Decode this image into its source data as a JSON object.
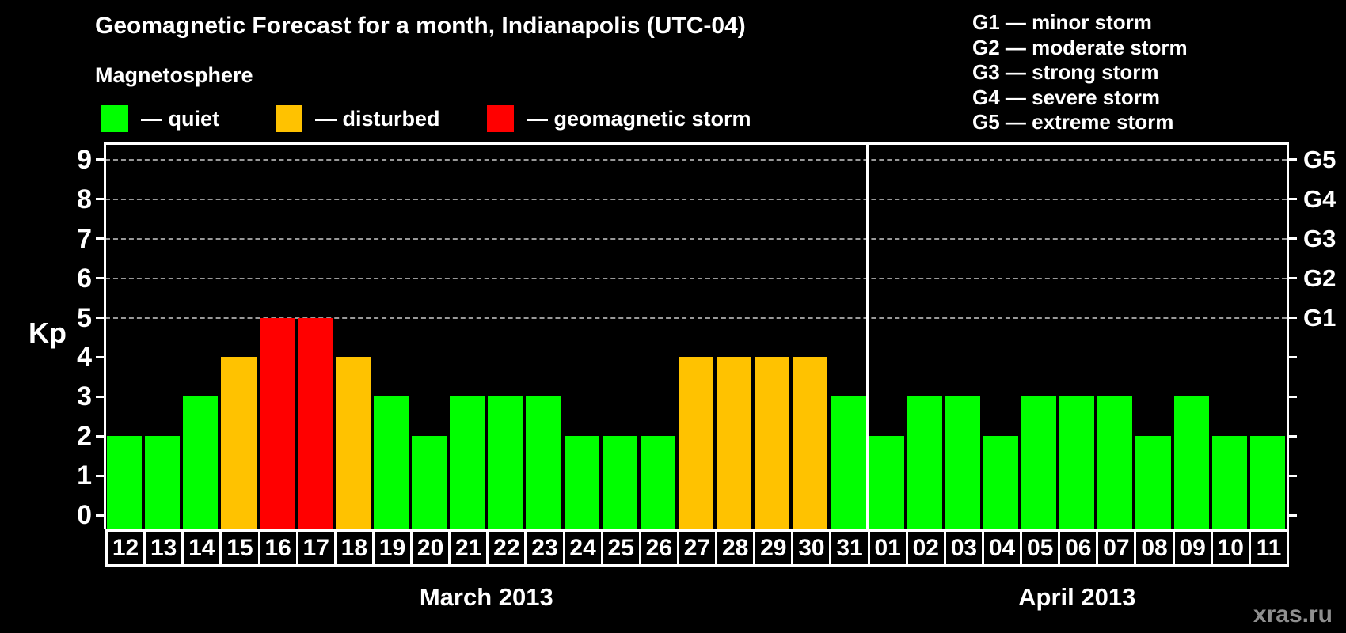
{
  "header": {
    "title": "Geomagnetic Forecast for a month, Indianapolis (UTC-04)"
  },
  "g_scale_legend": {
    "items": [
      {
        "label": "G1 — minor storm"
      },
      {
        "label": "G2 — moderate storm"
      },
      {
        "label": "G3 — strong storm"
      },
      {
        "label": "G4 — severe storm"
      },
      {
        "label": "G5 — extreme storm"
      }
    ]
  },
  "magnetosphere_legend": {
    "heading": "Magnetosphere",
    "items": [
      {
        "status": "quiet",
        "label": "— quiet",
        "color": "#00ff00"
      },
      {
        "status": "disturbed",
        "label": "— disturbed",
        "color": "#ffc200"
      },
      {
        "status": "storm",
        "label": "— geomagnetic storm",
        "color": "#ff0000"
      }
    ]
  },
  "watermark": "xras.ru",
  "chart_data": {
    "type": "bar",
    "title": "Geomagnetic Forecast for a month, Indianapolis (UTC-04)",
    "xlabel": "",
    "ylabel": "Kp",
    "ylim": [
      0,
      9
    ],
    "yticks": [
      0,
      1,
      2,
      3,
      4,
      5,
      6,
      7,
      8,
      9
    ],
    "gridlines_at_kp": [
      5,
      6,
      7,
      8,
      9
    ],
    "grid": "dashed horizontal at Kp 5-9 only",
    "legend_position": "top",
    "right_axis_labels": [
      {
        "kp": 5,
        "label": "G1"
      },
      {
        "kp": 6,
        "label": "G2"
      },
      {
        "kp": 7,
        "label": "G3"
      },
      {
        "kp": 8,
        "label": "G4"
      },
      {
        "kp": 9,
        "label": "G5"
      }
    ],
    "status_colors": {
      "quiet": "#00ff00",
      "disturbed": "#ffc200",
      "storm": "#ff0000"
    },
    "months": [
      {
        "label": "March 2013",
        "day_count": 20
      },
      {
        "label": "April 2013",
        "day_count": 11
      }
    ],
    "days": [
      {
        "date": "12",
        "kp": 2,
        "status": "quiet"
      },
      {
        "date": "13",
        "kp": 2,
        "status": "quiet"
      },
      {
        "date": "14",
        "kp": 3,
        "status": "quiet"
      },
      {
        "date": "15",
        "kp": 4,
        "status": "disturbed"
      },
      {
        "date": "16",
        "kp": 5,
        "status": "storm"
      },
      {
        "date": "17",
        "kp": 5,
        "status": "storm"
      },
      {
        "date": "18",
        "kp": 4,
        "status": "disturbed"
      },
      {
        "date": "19",
        "kp": 3,
        "status": "quiet"
      },
      {
        "date": "20",
        "kp": 2,
        "status": "quiet"
      },
      {
        "date": "21",
        "kp": 3,
        "status": "quiet"
      },
      {
        "date": "22",
        "kp": 3,
        "status": "quiet"
      },
      {
        "date": "23",
        "kp": 3,
        "status": "quiet"
      },
      {
        "date": "24",
        "kp": 2,
        "status": "quiet"
      },
      {
        "date": "25",
        "kp": 2,
        "status": "quiet"
      },
      {
        "date": "26",
        "kp": 2,
        "status": "quiet"
      },
      {
        "date": "27",
        "kp": 4,
        "status": "disturbed"
      },
      {
        "date": "28",
        "kp": 4,
        "status": "disturbed"
      },
      {
        "date": "29",
        "kp": 4,
        "status": "disturbed"
      },
      {
        "date": "30",
        "kp": 4,
        "status": "disturbed"
      },
      {
        "date": "31",
        "kp": 3,
        "status": "quiet"
      },
      {
        "date": "01",
        "kp": 2,
        "status": "quiet"
      },
      {
        "date": "02",
        "kp": 3,
        "status": "quiet"
      },
      {
        "date": "03",
        "kp": 3,
        "status": "quiet"
      },
      {
        "date": "04",
        "kp": 2,
        "status": "quiet"
      },
      {
        "date": "05",
        "kp": 3,
        "status": "quiet"
      },
      {
        "date": "06",
        "kp": 3,
        "status": "quiet"
      },
      {
        "date": "07",
        "kp": 3,
        "status": "quiet"
      },
      {
        "date": "08",
        "kp": 2,
        "status": "quiet"
      },
      {
        "date": "09",
        "kp": 3,
        "status": "quiet"
      },
      {
        "date": "10",
        "kp": 2,
        "status": "quiet"
      },
      {
        "date": "11",
        "kp": 2,
        "status": "quiet"
      }
    ]
  }
}
